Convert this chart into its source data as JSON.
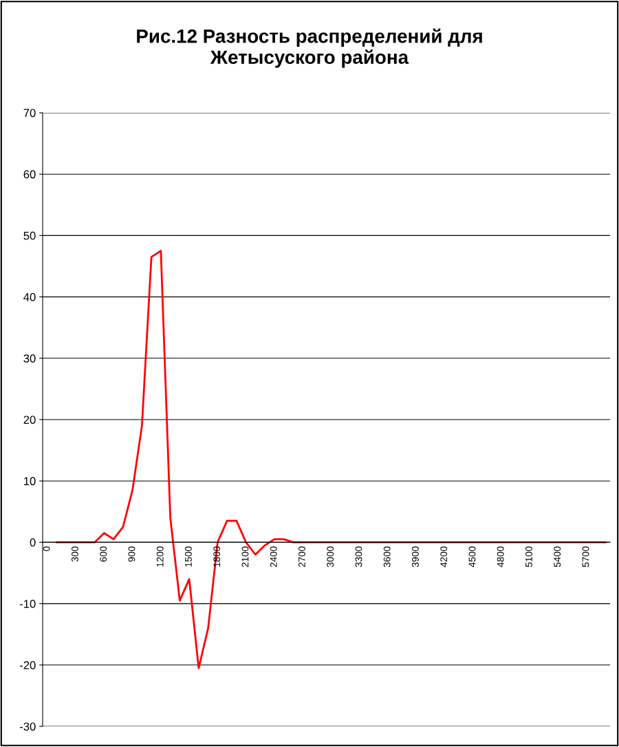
{
  "chart_data": {
    "type": "line",
    "title": "Рис.12 Разность распределений для\nЖетысуского района",
    "categories": [
      "0",
      null,
      null,
      "300",
      null,
      null,
      "600",
      null,
      null,
      "900",
      null,
      null,
      "1200",
      null,
      null,
      "1500",
      null,
      null,
      "1800",
      null,
      null,
      "2100",
      null,
      null,
      "2400",
      null,
      null,
      "2700",
      null,
      null,
      "3000",
      null,
      null,
      "3300",
      null,
      null,
      "3600",
      null,
      null,
      "3900",
      null,
      null,
      "4200",
      null,
      null,
      "4500",
      null,
      null,
      "4800",
      null,
      null,
      "5100",
      null,
      null,
      "5400",
      null,
      null,
      "5700",
      null,
      null
    ],
    "series": [
      {
        "color": "#ff0000",
        "values": [
          null,
          0,
          0,
          0,
          0,
          0,
          1.5,
          0.5,
          2.5,
          8.5,
          19,
          46.5,
          47.5,
          4,
          -9.5,
          -6,
          -20.5,
          -14,
          0,
          3.5,
          3.5,
          0,
          -2,
          -0.5,
          0.5,
          0.5,
          0,
          0,
          0,
          0,
          0,
          0,
          0,
          0,
          0,
          0,
          0,
          0,
          0,
          0,
          0,
          0,
          0,
          0,
          0,
          0,
          0,
          0,
          0,
          0,
          0,
          0,
          0,
          0,
          0,
          0,
          0,
          0,
          0,
          0
        ]
      }
    ],
    "ylim": [
      -30,
      70
    ],
    "yticks": [
      -30,
      -20,
      -10,
      0,
      10,
      20,
      30,
      40,
      50,
      60,
      70
    ],
    "grid": "y",
    "marker": "none",
    "line_style": "solid",
    "legend": false
  }
}
